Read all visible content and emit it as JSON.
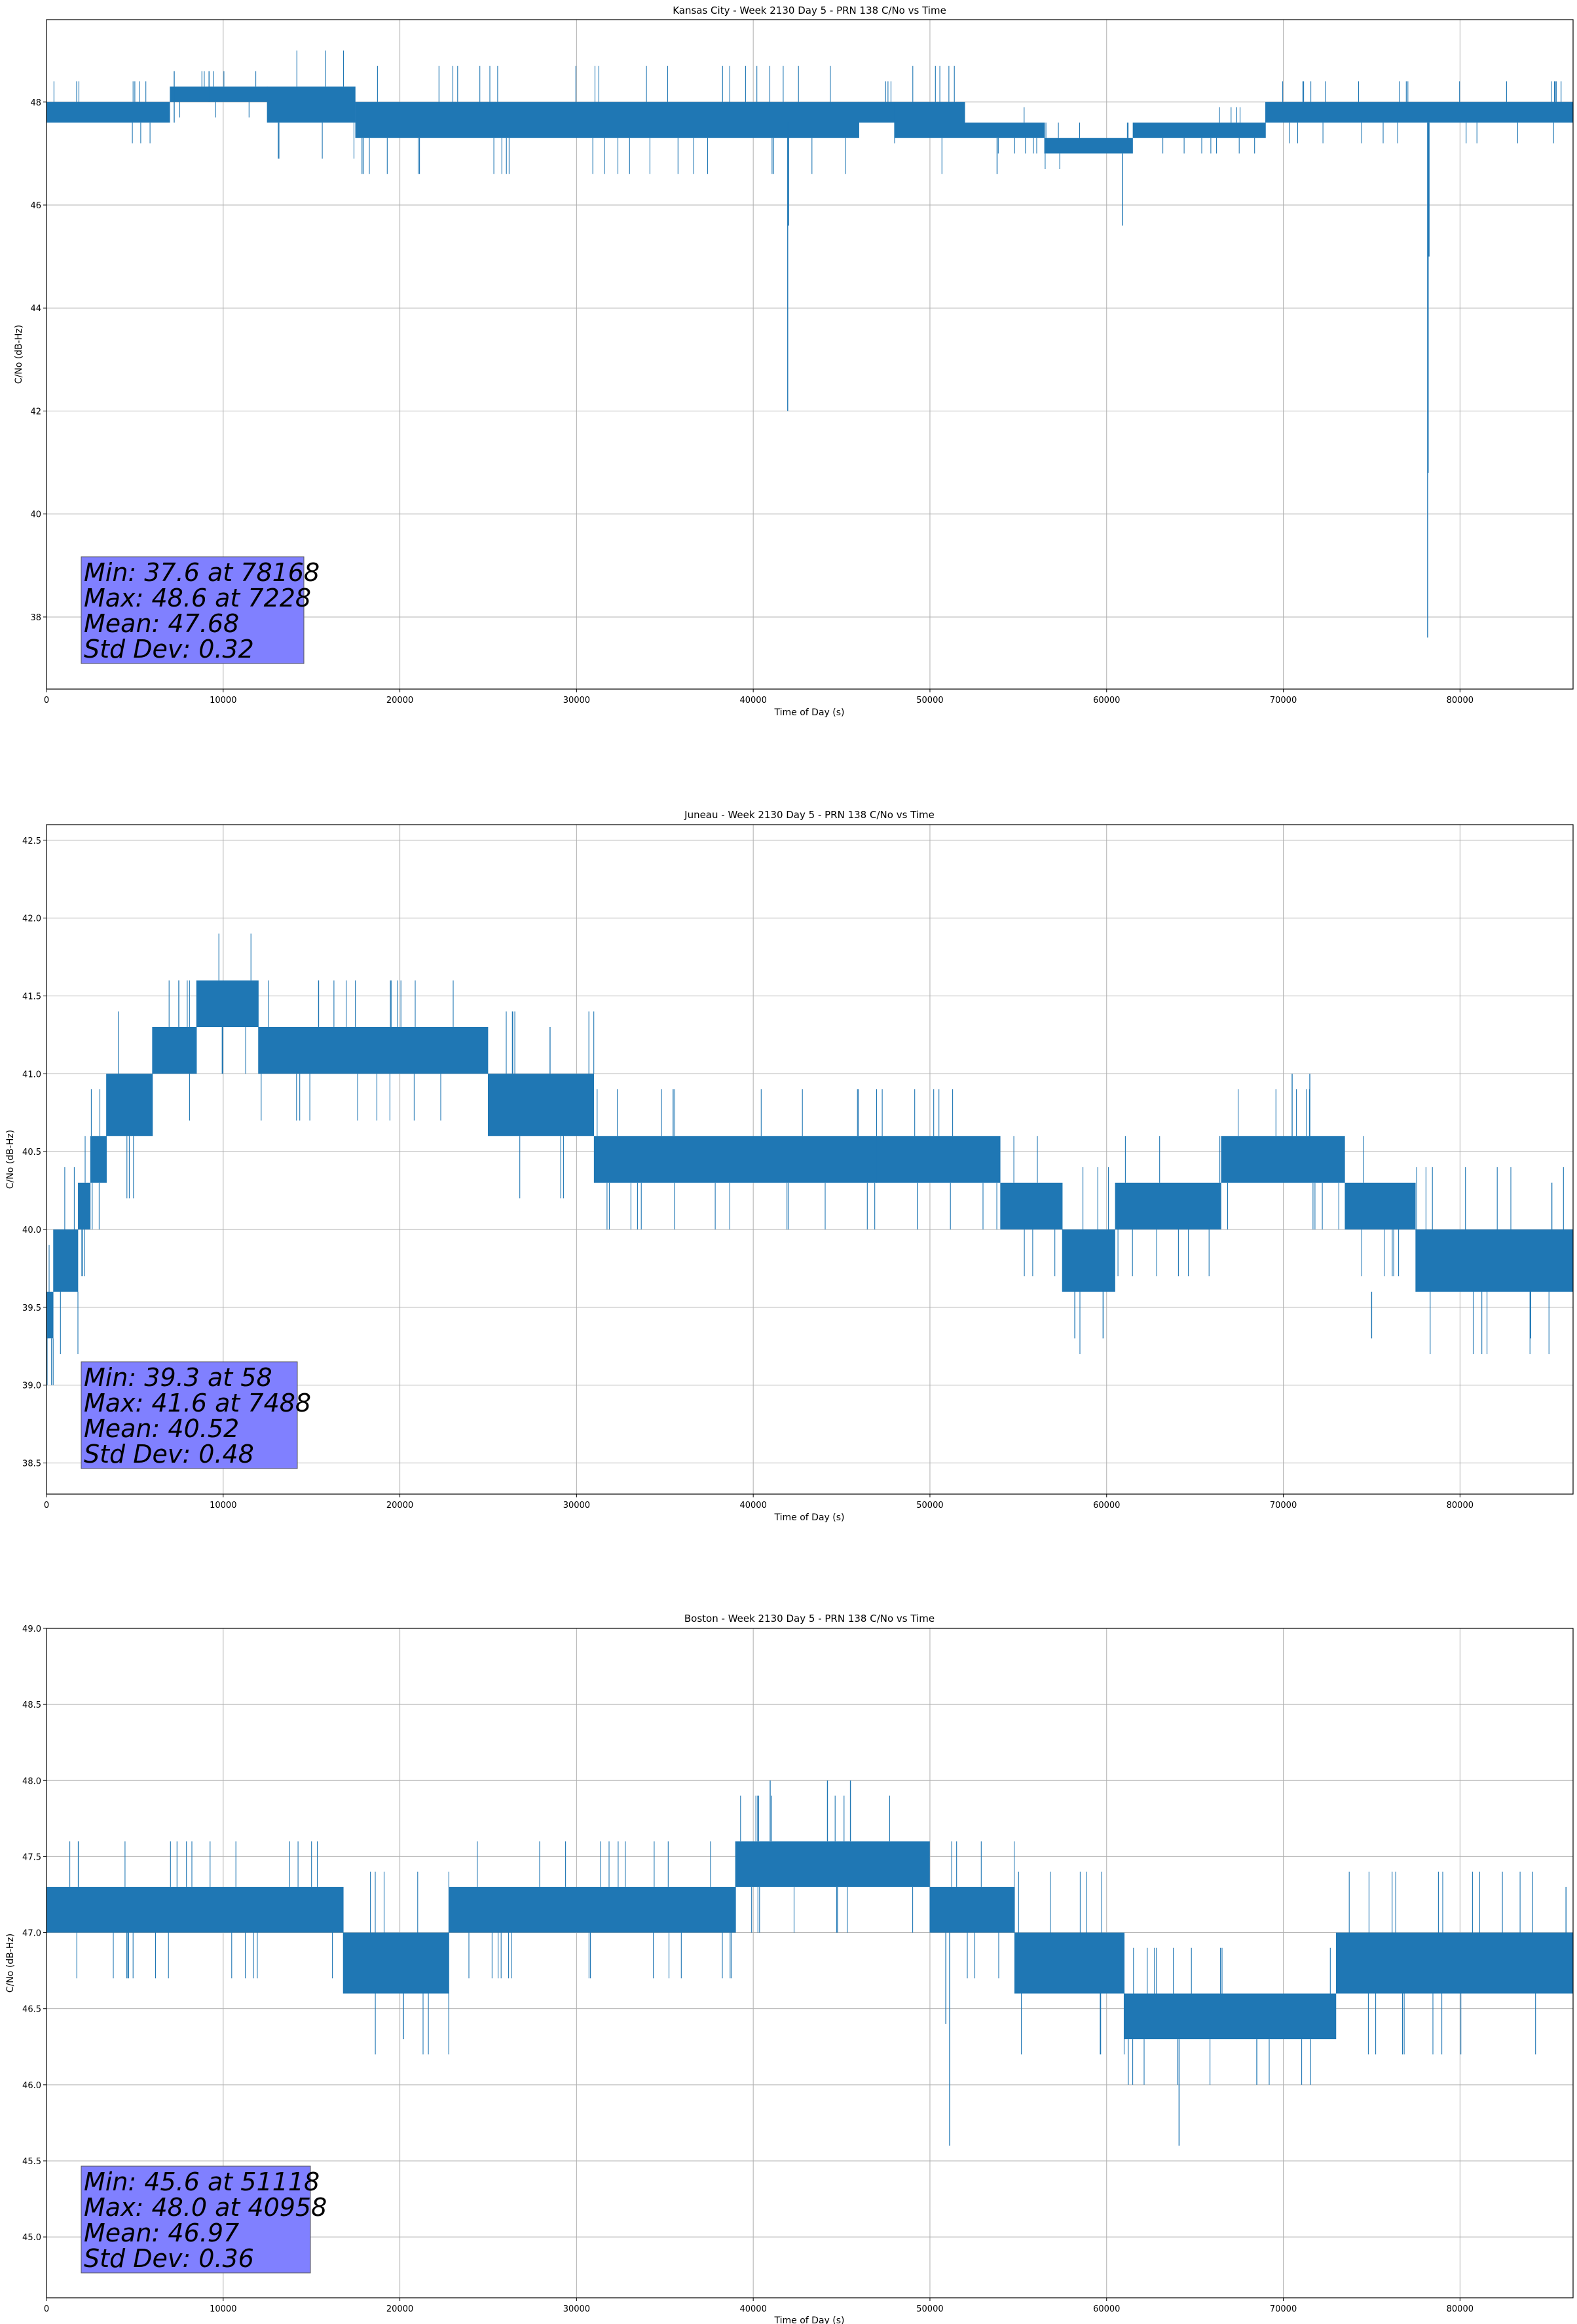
{
  "figure": {
    "colors": {
      "line": "#1f77b4",
      "grid": "#b0b0b0",
      "axis": "#000000",
      "stats_box_fill": "#8080ff",
      "stats_box_stroke": "#555555",
      "background": "#ffffff"
    }
  },
  "chart_data": [
    {
      "type": "line",
      "title": "Kansas City - Week 2130 Day 5 - PRN 138 C/No vs Time",
      "xlabel": "Time of Day (s)",
      "ylabel": "C/No (dB-Hz)",
      "xlim": [
        0,
        86400
      ],
      "ylim": [
        36.6,
        49.6
      ],
      "xticks": [
        0,
        10000,
        20000,
        30000,
        40000,
        50000,
        60000,
        70000,
        80000
      ],
      "yticks": [
        38,
        40,
        42,
        44,
        46,
        48
      ],
      "ytick_labels": [
        "38",
        "40",
        "42",
        "44",
        "46",
        "48"
      ],
      "grid": true,
      "stats": {
        "line1": "Min: 37.6 at 78168",
        "line2": "Max: 48.6 at 7228",
        "line3": "Mean: 47.68",
        "line4": "Std Dev: 0.32"
      },
      "bands": [
        {
          "x0": 0,
          "x1": 7000,
          "lo": 47.6,
          "hi": 48.0
        },
        {
          "x0": 7000,
          "x1": 12500,
          "lo": 48.0,
          "hi": 48.3
        },
        {
          "x0": 12500,
          "x1": 17500,
          "lo": 47.6,
          "hi": 48.3
        },
        {
          "x0": 17500,
          "x1": 30000,
          "lo": 47.3,
          "hi": 48.0
        },
        {
          "x0": 30000,
          "x1": 46000,
          "lo": 47.3,
          "hi": 48.0
        },
        {
          "x0": 46000,
          "x1": 48000,
          "lo": 47.6,
          "hi": 48.0
        },
        {
          "x0": 48000,
          "x1": 52000,
          "lo": 47.3,
          "hi": 48.0
        },
        {
          "x0": 52000,
          "x1": 56500,
          "lo": 47.3,
          "hi": 47.6
        },
        {
          "x0": 56500,
          "x1": 61500,
          "lo": 47.0,
          "hi": 47.3
        },
        {
          "x0": 61500,
          "x1": 69000,
          "lo": 47.3,
          "hi": 47.6
        },
        {
          "x0": 69000,
          "x1": 86400,
          "lo": 47.6,
          "hi": 48.0
        }
      ],
      "spikes": [
        {
          "x": 7228,
          "lo": 47.6,
          "hi": 48.6
        },
        {
          "x": 9200,
          "lo": 48.0,
          "hi": 48.6
        },
        {
          "x": 41950,
          "lo": 42.0,
          "hi": 47.6
        },
        {
          "x": 42000,
          "lo": 45.6,
          "hi": 47.6
        },
        {
          "x": 53800,
          "lo": 46.6,
          "hi": 47.3
        },
        {
          "x": 60900,
          "lo": 45.6,
          "hi": 47.0
        },
        {
          "x": 78168,
          "lo": 37.6,
          "hi": 47.6
        },
        {
          "x": 78200,
          "lo": 40.8,
          "hi": 47.6
        },
        {
          "x": 78250,
          "lo": 45.0,
          "hi": 47.6
        }
      ]
    },
    {
      "type": "line",
      "title": "Juneau - Week 2130 Day 5 - PRN 138 C/No vs Time",
      "xlabel": "Time of Day (s)",
      "ylabel": "C/No (dB-Hz)",
      "xlim": [
        0,
        86400
      ],
      "ylim": [
        38.3,
        42.6
      ],
      "xticks": [
        0,
        10000,
        20000,
        30000,
        40000,
        50000,
        60000,
        70000,
        80000
      ],
      "yticks": [
        38.5,
        39.0,
        39.5,
        40.0,
        40.5,
        41.0,
        41.5,
        42.0,
        42.5
      ],
      "ytick_labels": [
        "38.5",
        "39.0",
        "39.5",
        "40.0",
        "40.5",
        "41.0",
        "41.5",
        "42.0",
        "42.5"
      ],
      "grid": true,
      "stats": {
        "line1": "Min: 39.3 at 58",
        "line2": "Max: 41.6 at 7488",
        "line3": "Mean: 40.52",
        "line4": "Std Dev: 0.48"
      },
      "bands": [
        {
          "x0": 0,
          "x1": 400,
          "lo": 39.3,
          "hi": 39.6
        },
        {
          "x0": 400,
          "x1": 1800,
          "lo": 39.6,
          "hi": 40.0
        },
        {
          "x0": 1800,
          "x1": 2500,
          "lo": 40.0,
          "hi": 40.3
        },
        {
          "x0": 2500,
          "x1": 3400,
          "lo": 40.3,
          "hi": 40.6
        },
        {
          "x0": 3400,
          "x1": 6000,
          "lo": 40.6,
          "hi": 41.0
        },
        {
          "x0": 6000,
          "x1": 8500,
          "lo": 41.0,
          "hi": 41.3
        },
        {
          "x0": 8500,
          "x1": 12000,
          "lo": 41.3,
          "hi": 41.6
        },
        {
          "x0": 12000,
          "x1": 25000,
          "lo": 41.0,
          "hi": 41.3
        },
        {
          "x0": 25000,
          "x1": 31000,
          "lo": 40.6,
          "hi": 41.0
        },
        {
          "x0": 31000,
          "x1": 47000,
          "lo": 40.3,
          "hi": 40.6
        },
        {
          "x0": 47000,
          "x1": 54000,
          "lo": 40.3,
          "hi": 40.6
        },
        {
          "x0": 54000,
          "x1": 57500,
          "lo": 40.0,
          "hi": 40.3
        },
        {
          "x0": 57500,
          "x1": 60500,
          "lo": 39.6,
          "hi": 40.0
        },
        {
          "x0": 60500,
          "x1": 66500,
          "lo": 40.0,
          "hi": 40.3
        },
        {
          "x0": 66500,
          "x1": 73500,
          "lo": 40.3,
          "hi": 40.6
        },
        {
          "x0": 73500,
          "x1": 77500,
          "lo": 40.0,
          "hi": 40.3
        },
        {
          "x0": 77500,
          "x1": 86400,
          "lo": 39.6,
          "hi": 40.0
        }
      ],
      "spikes": [
        {
          "x": 58,
          "lo": 39.3,
          "hi": 39.6
        },
        {
          "x": 7488,
          "lo": 41.3,
          "hi": 41.6
        },
        {
          "x": 15400,
          "lo": 41.3,
          "hi": 41.6
        },
        {
          "x": 28500,
          "lo": 41.0,
          "hi": 41.3
        },
        {
          "x": 58200,
          "lo": 39.3,
          "hi": 39.6
        },
        {
          "x": 59800,
          "lo": 39.3,
          "hi": 39.6
        },
        {
          "x": 70500,
          "lo": 40.6,
          "hi": 41.0
        },
        {
          "x": 71500,
          "lo": 40.6,
          "hi": 41.0
        },
        {
          "x": 75000,
          "lo": 39.3,
          "hi": 39.6
        },
        {
          "x": 84000,
          "lo": 39.3,
          "hi": 39.6
        },
        {
          "x": 85200,
          "lo": 40.0,
          "hi": 40.3
        }
      ]
    },
    {
      "type": "line",
      "title": "Boston - Week 2130 Day 5 - PRN 138 C/No vs Time",
      "xlabel": "Time of Day (s)",
      "ylabel": "C/No (dB-Hz)",
      "xlim": [
        0,
        86400
      ],
      "ylim": [
        44.6,
        49.0
      ],
      "xticks": [
        0,
        10000,
        20000,
        30000,
        40000,
        50000,
        60000,
        70000,
        80000
      ],
      "yticks": [
        45.0,
        45.5,
        46.0,
        46.5,
        47.0,
        47.5,
        48.0,
        48.5,
        49.0
      ],
      "ytick_labels": [
        "45.0",
        "45.5",
        "46.0",
        "46.5",
        "47.0",
        "47.5",
        "48.0",
        "48.5",
        "49.0"
      ],
      "grid": true,
      "stats": {
        "line1": "Min: 45.6 at 51118",
        "line2": "Max: 48.0 at 40958",
        "line3": "Mean: 46.97",
        "line4": "Std Dev: 0.36"
      },
      "bands": [
        {
          "x0": 0,
          "x1": 16800,
          "lo": 47.0,
          "hi": 47.3
        },
        {
          "x0": 16800,
          "x1": 22800,
          "lo": 46.6,
          "hi": 47.0
        },
        {
          "x0": 22800,
          "x1": 39000,
          "lo": 47.0,
          "hi": 47.3
        },
        {
          "x0": 39000,
          "x1": 50000,
          "lo": 47.3,
          "hi": 47.6
        },
        {
          "x0": 50000,
          "x1": 54800,
          "lo": 47.0,
          "hi": 47.3
        },
        {
          "x0": 54800,
          "x1": 61000,
          "lo": 46.6,
          "hi": 47.0
        },
        {
          "x0": 61000,
          "x1": 73000,
          "lo": 46.3,
          "hi": 46.6
        },
        {
          "x0": 73000,
          "x1": 86400,
          "lo": 46.6,
          "hi": 47.0
        }
      ],
      "spikes": [
        {
          "x": 1800,
          "lo": 47.3,
          "hi": 47.6
        },
        {
          "x": 20200,
          "lo": 46.3,
          "hi": 46.6
        },
        {
          "x": 40958,
          "lo": 47.6,
          "hi": 48.0
        },
        {
          "x": 44200,
          "lo": 47.6,
          "hi": 48.0
        },
        {
          "x": 45500,
          "lo": 47.6,
          "hi": 48.0
        },
        {
          "x": 51118,
          "lo": 45.6,
          "hi": 47.0
        },
        {
          "x": 50900,
          "lo": 46.4,
          "hi": 47.0
        },
        {
          "x": 64100,
          "lo": 45.6,
          "hi": 46.3
        },
        {
          "x": 68500,
          "lo": 46.0,
          "hi": 46.3
        },
        {
          "x": 86000,
          "lo": 47.0,
          "hi": 47.3
        }
      ]
    }
  ]
}
